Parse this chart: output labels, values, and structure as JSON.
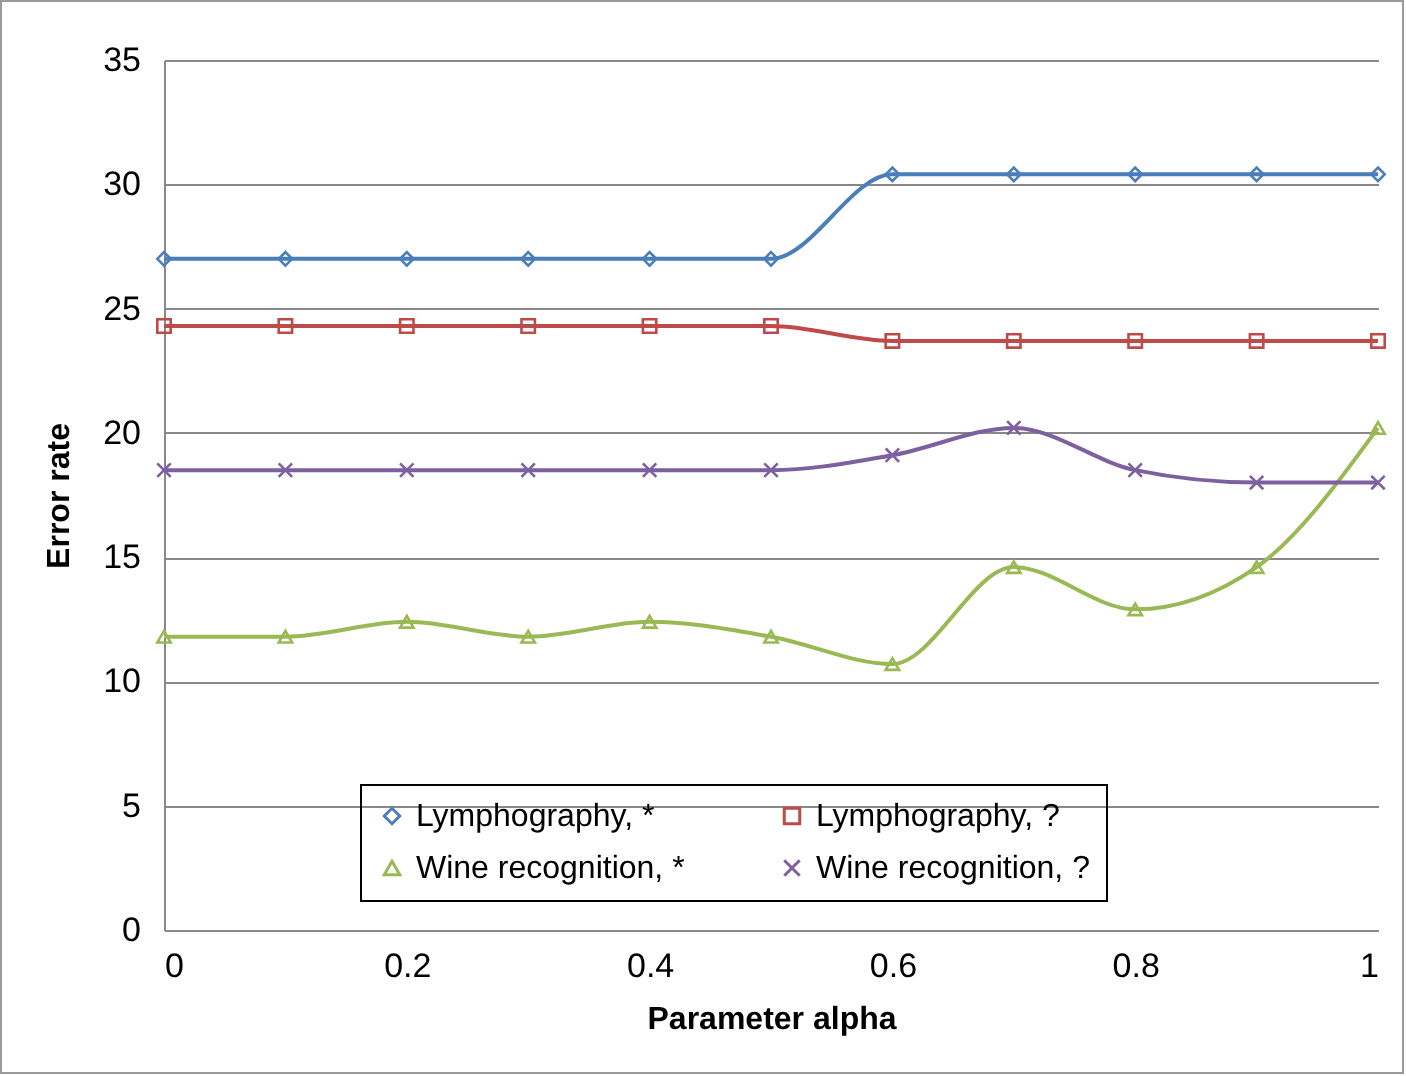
{
  "chart_data": {
    "type": "line",
    "xlabel": "Parameter alpha",
    "ylabel": "Error rate",
    "x": [
      0,
      0.1,
      0.2,
      0.3,
      0.4,
      0.5,
      0.6,
      0.7,
      0.8,
      0.9,
      1
    ],
    "xlim": [
      0,
      1
    ],
    "xticks": [
      0,
      0.2,
      0.4,
      0.6,
      0.8,
      1
    ],
    "ylim": [
      0,
      35
    ],
    "yticks": [
      0,
      5,
      10,
      15,
      20,
      25,
      30,
      35
    ],
    "grid": "y",
    "legend": "bottom right",
    "series": [
      {
        "name": "Lymphography, *",
        "color": "#4a7ebb",
        "marker": "diamond",
        "values": [
          27.0,
          27.0,
          27.0,
          27.0,
          27.0,
          27.0,
          30.4,
          30.4,
          30.4,
          30.4,
          30.4
        ]
      },
      {
        "name": "Lymphography, ?",
        "color": "#be4b48",
        "marker": "square",
        "values": [
          24.3,
          24.3,
          24.3,
          24.3,
          24.3,
          24.3,
          23.7,
          23.7,
          23.7,
          23.7,
          23.7
        ]
      },
      {
        "name": "Wine recognition, *",
        "color": "#98b954",
        "marker": "triangle",
        "values": [
          11.8,
          11.8,
          12.4,
          11.8,
          12.4,
          11.8,
          10.7,
          14.6,
          12.9,
          14.6,
          20.2
        ]
      },
      {
        "name": "Wine recognition, ?",
        "color": "#7d60a0",
        "marker": "cross",
        "values": [
          18.5,
          18.5,
          18.5,
          18.5,
          18.5,
          18.5,
          19.1,
          20.2,
          18.5,
          18.0,
          18.0
        ]
      }
    ]
  }
}
